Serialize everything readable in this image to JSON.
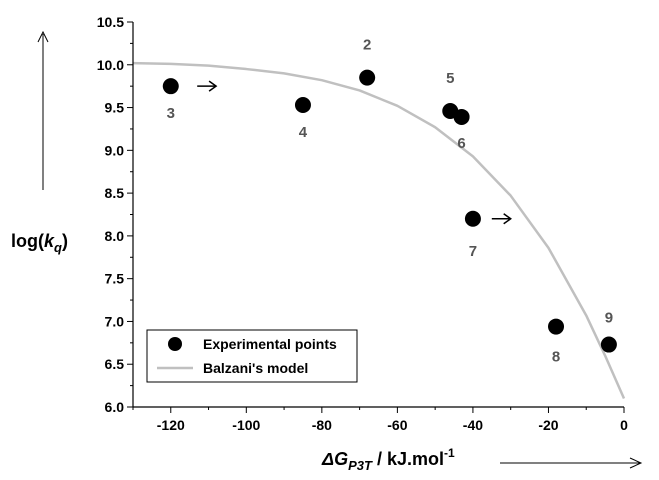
{
  "chart_data": {
    "type": "scatter",
    "xlim": [
      -130,
      0
    ],
    "ylim": [
      6.0,
      10.5
    ],
    "x_ticks": [
      -120,
      -100,
      -80,
      -60,
      -40,
      -20,
      0
    ],
    "y_ticks": [
      6.0,
      6.5,
      7.0,
      7.5,
      8.0,
      8.5,
      9.0,
      9.5,
      10.0,
      10.5
    ],
    "x_tick_labels": [
      "-120",
      "-100",
      "-80",
      "-60",
      "-40",
      "-20",
      "0"
    ],
    "y_tick_labels": [
      "6.0",
      "6.5",
      "7.0",
      "7.5",
      "8.0",
      "8.5",
      "9.0",
      "9.5",
      "10.0",
      "10.5"
    ],
    "ylabel": {
      "prefix": "log(",
      "var": "k",
      "sub": "q",
      "suffix": ")"
    },
    "xlabel": {
      "var": "ΔG",
      "sub": "P3T",
      "unit": " / kJ.mol",
      "sup": "-1"
    },
    "legend": {
      "position": "bottom-left",
      "items": [
        "Experimental points",
        "Balzani's model"
      ]
    },
    "series": [
      {
        "name": "Experimental points",
        "type": "scatter",
        "color": "#000000",
        "points": [
          {
            "x": -68,
            "y": 9.85,
            "label": "2"
          },
          {
            "x": -120,
            "y": 9.75,
            "label": "3"
          },
          {
            "x": -85,
            "y": 9.53,
            "label": "4"
          },
          {
            "x": -46,
            "y": 9.46,
            "label": "5"
          },
          {
            "x": -43,
            "y": 9.39,
            "label": "6"
          },
          {
            "x": -40,
            "y": 8.2,
            "label": "7"
          },
          {
            "x": -18,
            "y": 6.94,
            "label": "8"
          },
          {
            "x": -4,
            "y": 6.73,
            "label": "9"
          }
        ]
      },
      {
        "name": "Balzani's model",
        "type": "line",
        "color": "#c0c0c0",
        "x": [
          -130,
          -120,
          -110,
          -100,
          -90,
          -80,
          -70,
          -60,
          -50,
          -40,
          -30,
          -20,
          -10,
          -5,
          0
        ],
        "y": [
          10.02,
          10.01,
          9.99,
          9.95,
          9.9,
          9.82,
          9.7,
          9.52,
          9.27,
          8.93,
          8.47,
          7.86,
          7.07,
          6.6,
          6.1
        ]
      }
    ],
    "annotations": [
      {
        "type": "arrow",
        "x1": -113,
        "x2": -108,
        "y": 9.75
      },
      {
        "type": "arrow",
        "x1": -35,
        "x2": -30,
        "y": 8.2
      }
    ]
  }
}
